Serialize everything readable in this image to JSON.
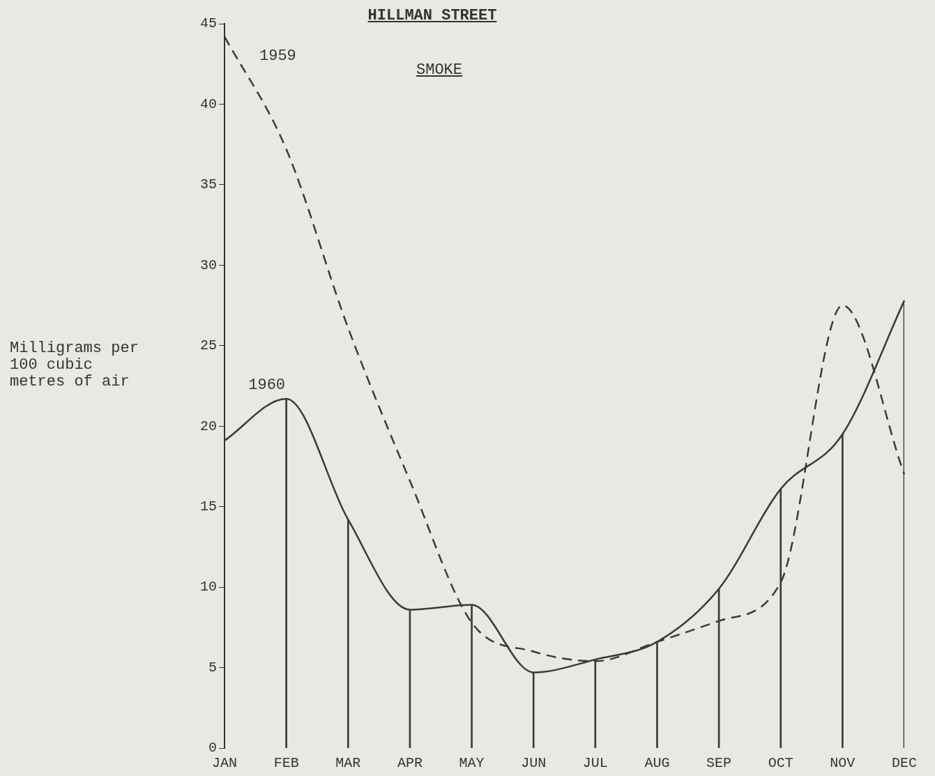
{
  "chart_data": {
    "type": "line",
    "title": "HILLMAN STREET",
    "subtitle": "SMOKE",
    "ylabel": "Milligrams per 100 cubic metres of air",
    "categories": [
      "JAN",
      "FEB",
      "MAR",
      "APR",
      "MAY",
      "JUN",
      "JUL",
      "AUG",
      "SEP",
      "OCT",
      "NOV",
      "DEC"
    ],
    "series": [
      {
        "name": "1959",
        "color": "#3a3a3a",
        "line_style": "dashed",
        "values": [
          44.2,
          37.2,
          26.1,
          16.6,
          7.8,
          6.0,
          5.4,
          6.6,
          7.9,
          10.3,
          27.5,
          17.0
        ]
      },
      {
        "name": "1960",
        "color": "#3a3a3a",
        "line_style": "solid",
        "values": [
          19.1,
          21.7,
          14.2,
          8.6,
          8.9,
          4.7,
          5.5,
          6.6,
          9.9,
          16.1,
          19.5,
          27.8
        ]
      },
      {
        "type": "bar",
        "color": "#3a3a3a",
        "values": [
          null,
          21.7,
          14.2,
          8.6,
          8.9,
          4.7,
          5.5,
          6.6,
          9.9,
          16.1,
          19.5,
          27.8
        ]
      }
    ],
    "ylim": [
      0,
      45
    ],
    "yticks": [
      0,
      5,
      10,
      15,
      20,
      25,
      30,
      35,
      40,
      45
    ],
    "grid": false,
    "legend": false,
    "marker": "none"
  }
}
